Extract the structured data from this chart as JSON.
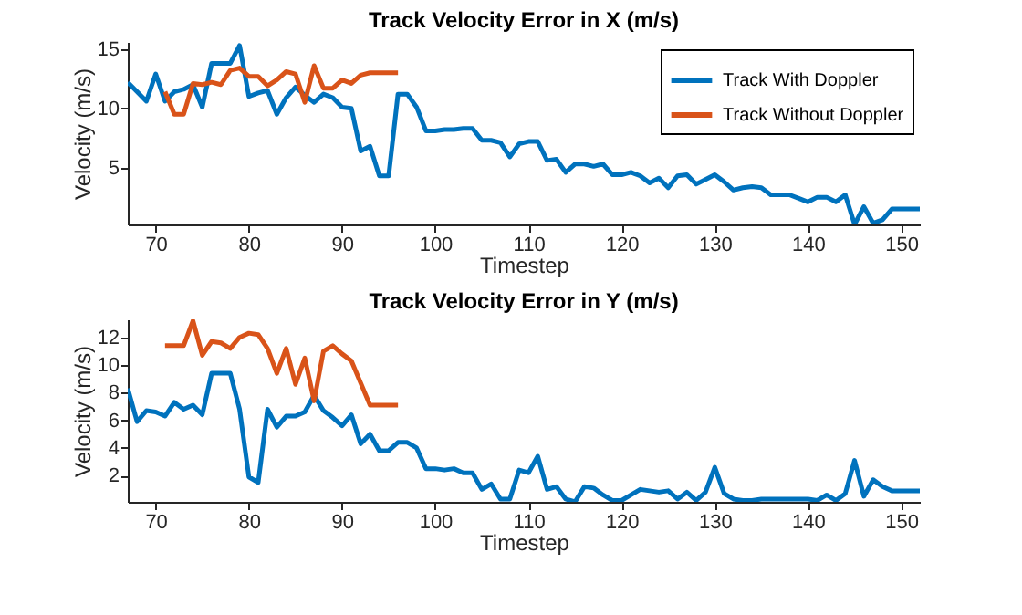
{
  "chart_data": [
    {
      "type": "line",
      "title": "Track Velocity Error in X (m/s)",
      "xlabel": "Timestep",
      "ylabel": "Velocity (m/s)",
      "xlim": [
        67,
        152
      ],
      "ylim": [
        0.2,
        15.6
      ],
      "xticks": [
        70,
        80,
        90,
        100,
        110,
        120,
        130,
        140,
        150
      ],
      "yticks": [
        5,
        10,
        15
      ],
      "grid": false,
      "legend": "top right",
      "line_style": "solid",
      "marker": "none",
      "series": [
        {
          "name": "Track With Doppler",
          "color": "#0072bd",
          "x": [
            67,
            68,
            69,
            70,
            71,
            72,
            73,
            74,
            75,
            76,
            77,
            78,
            79,
            80,
            81,
            82,
            83,
            84,
            85,
            86,
            87,
            88,
            89,
            90,
            91,
            92,
            93,
            94,
            95,
            96,
            97,
            98,
            99,
            100,
            101,
            102,
            103,
            104,
            105,
            106,
            107,
            108,
            109,
            110,
            111,
            112,
            113,
            114,
            115,
            116,
            117,
            118,
            119,
            120,
            121,
            122,
            123,
            124,
            125,
            126,
            127,
            128,
            129,
            130,
            131,
            132,
            133,
            134,
            135,
            136,
            137,
            138,
            139,
            140,
            141,
            142,
            143,
            144,
            145,
            146,
            147,
            148,
            149,
            150,
            151,
            152
          ],
          "values": [
            12.2,
            11.4,
            10.6,
            12.9,
            10.6,
            11.4,
            11.6,
            12.0,
            10.1,
            13.8,
            13.8,
            13.8,
            15.3,
            11.0,
            11.3,
            11.5,
            9.5,
            10.9,
            11.8,
            11.1,
            10.5,
            11.2,
            10.9,
            10.1,
            10.0,
            6.4,
            6.8,
            4.3,
            4.3,
            11.2,
            11.2,
            10.1,
            8.1,
            8.1,
            8.2,
            8.2,
            8.3,
            8.3,
            7.3,
            7.3,
            7.1,
            5.9,
            7.0,
            7.2,
            7.2,
            5.6,
            5.7,
            4.6,
            5.3,
            5.3,
            5.1,
            5.3,
            4.4,
            4.4,
            4.6,
            4.3,
            3.7,
            4.1,
            3.3,
            4.3,
            4.4,
            3.6,
            4.0,
            4.4,
            3.8,
            3.1,
            3.3,
            3.4,
            3.3,
            2.7,
            2.7,
            2.7,
            2.4,
            2.1,
            2.5,
            2.5,
            2.1,
            2.7,
            0.2,
            1.7,
            0.3,
            0.6,
            1.5,
            1.5,
            1.5,
            1.5
          ]
        },
        {
          "name": "Track Without Doppler",
          "color": "#d95319",
          "x": [
            71,
            72,
            73,
            74,
            75,
            76,
            77,
            78,
            79,
            80,
            81,
            82,
            83,
            84,
            85,
            86,
            87,
            88,
            89,
            90,
            91,
            92,
            93,
            94,
            95,
            96
          ],
          "values": [
            11.4,
            9.5,
            9.5,
            12.1,
            12.0,
            12.2,
            12.0,
            13.2,
            13.4,
            12.7,
            12.7,
            11.9,
            12.4,
            13.1,
            12.9,
            10.5,
            13.6,
            11.7,
            11.7,
            12.4,
            12.1,
            12.8,
            13.0,
            13.0,
            13.0,
            13.0
          ]
        }
      ]
    },
    {
      "type": "line",
      "title": "Track Velocity Error in Y (m/s)",
      "xlabel": "Timestep",
      "ylabel": "Velocity (m/s)",
      "xlim": [
        67,
        152
      ],
      "ylim": [
        0.1,
        13.3
      ],
      "xticks": [
        70,
        80,
        90,
        100,
        110,
        120,
        130,
        140,
        150
      ],
      "yticks": [
        2,
        4,
        6,
        8,
        10,
        12
      ],
      "grid": false,
      "legend": "top right",
      "line_style": "solid",
      "marker": "none",
      "series": [
        {
          "name": "Track With Doppler",
          "color": "#0072bd",
          "x": [
            67,
            68,
            69,
            70,
            71,
            72,
            73,
            74,
            75,
            76,
            77,
            78,
            79,
            80,
            81,
            82,
            83,
            84,
            85,
            86,
            87,
            88,
            89,
            90,
            91,
            92,
            93,
            94,
            95,
            96,
            97,
            98,
            99,
            100,
            101,
            102,
            103,
            104,
            105,
            106,
            107,
            108,
            109,
            110,
            111,
            112,
            113,
            114,
            115,
            116,
            117,
            118,
            119,
            120,
            121,
            122,
            123,
            124,
            125,
            126,
            127,
            128,
            129,
            130,
            131,
            132,
            133,
            134,
            135,
            136,
            137,
            138,
            139,
            140,
            141,
            142,
            143,
            144,
            145,
            146,
            147,
            148,
            149,
            150,
            151,
            152
          ],
          "values": [
            8.3,
            5.9,
            6.7,
            6.6,
            6.3,
            7.3,
            6.8,
            7.1,
            6.4,
            9.4,
            9.4,
            9.4,
            6.8,
            1.9,
            1.5,
            6.8,
            5.5,
            6.3,
            6.3,
            6.6,
            7.8,
            6.7,
            6.2,
            5.6,
            6.4,
            4.3,
            5.0,
            3.8,
            3.8,
            4.4,
            4.4,
            4.0,
            2.5,
            2.5,
            2.4,
            2.5,
            2.2,
            2.2,
            1.0,
            1.4,
            0.3,
            0.3,
            2.4,
            2.2,
            3.4,
            1.0,
            1.2,
            0.3,
            0.1,
            1.2,
            1.1,
            0.6,
            0.2,
            0.2,
            0.6,
            1.0,
            0.9,
            0.8,
            0.9,
            0.3,
            0.8,
            0.2,
            0.8,
            2.6,
            0.7,
            0.3,
            0.2,
            0.2,
            0.3,
            0.3,
            0.3,
            0.3,
            0.3,
            0.3,
            0.2,
            0.6,
            0.2,
            0.7,
            3.1,
            0.5,
            1.7,
            1.2,
            0.9,
            0.9,
            0.9,
            0.9
          ]
        },
        {
          "name": "Track Without Doppler",
          "color": "#d95319",
          "x": [
            71,
            72,
            73,
            74,
            75,
            76,
            77,
            78,
            79,
            80,
            81,
            82,
            83,
            84,
            85,
            86,
            87,
            88,
            89,
            90,
            91,
            92,
            93,
            94,
            95,
            96
          ],
          "values": [
            11.4,
            11.4,
            11.4,
            13.2,
            10.7,
            11.7,
            11.6,
            11.2,
            12.0,
            12.3,
            12.2,
            11.2,
            9.4,
            11.2,
            8.6,
            10.5,
            7.4,
            11.0,
            11.4,
            10.8,
            10.3,
            8.7,
            7.1,
            7.1,
            7.1,
            7.1
          ]
        }
      ]
    }
  ]
}
